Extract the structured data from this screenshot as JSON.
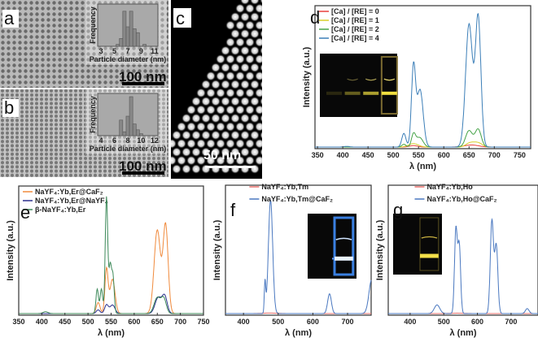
{
  "panels": {
    "a": {
      "label": "a",
      "scale_bar": "100 nm",
      "hist": {
        "ylabel": "Frequency",
        "xlabel": "Particle diameter (nm)",
        "ticks": [
          "3",
          "5",
          "7",
          "9",
          "11"
        ],
        "xlim": [
          2.5,
          11.5
        ],
        "bins": [
          [
            5.5,
            0.05
          ],
          [
            6,
            0.2
          ],
          [
            6.5,
            0.9
          ],
          [
            7,
            0.5
          ],
          [
            7.5,
            0.9
          ],
          [
            8,
            0.45
          ],
          [
            8.5,
            0.35
          ],
          [
            9.5,
            0.05
          ]
        ]
      }
    },
    "b": {
      "label": "b",
      "scale_bar": "100 nm",
      "hist": {
        "ylabel": "Frequency",
        "xlabel": "Particle diameter (nm)",
        "ticks": [
          "4",
          "6",
          "8",
          "10",
          "12"
        ],
        "xlim": [
          3.5,
          12.5
        ],
        "bins": [
          [
            7,
            0.4
          ],
          [
            7.5,
            0.1
          ],
          [
            8,
            0.5
          ],
          [
            8.5,
            1.0
          ],
          [
            9,
            0.3
          ],
          [
            9.5,
            0.15
          ],
          [
            10,
            0.05
          ]
        ]
      }
    },
    "c": {
      "label": "c",
      "scale_bar": "50 nm"
    }
  },
  "chart_data": [
    {
      "id": "d",
      "type": "line",
      "label": "d",
      "xlabel": "λ (nm)",
      "ylabel": "Intensity (a.u.)",
      "xlim": [
        345,
        772
      ],
      "ticks": [
        350,
        400,
        450,
        500,
        550,
        600,
        650,
        700,
        750
      ],
      "legend": "top-left",
      "inset_photo": "yellow",
      "series": [
        {
          "name": "[Ca] / [RE] = 0",
          "color": "#e8413c",
          "peaks": [
            [
              540,
              0.01,
              12
            ],
            [
              655,
              0.015,
              20
            ]
          ]
        },
        {
          "name": "[Ca] / [RE] = 1",
          "color": "#d8cf2a",
          "peaks": [
            [
              540,
              0.025,
              14
            ],
            [
              652,
              0.03,
              12
            ],
            [
              668,
              0.03,
              12
            ]
          ]
        },
        {
          "name": "[Ca] / [RE] = 2",
          "color": "#45a348",
          "peaks": [
            [
              521,
              0.02,
              6
            ],
            [
              540,
              0.09,
              6
            ],
            [
              552,
              0.07,
              10
            ],
            [
              650,
              0.12,
              10
            ],
            [
              668,
              0.13,
              9
            ]
          ]
        },
        {
          "name": "[Ca] / [RE] = 4",
          "color": "#3c7fb8",
          "peaks": [
            [
              408,
              0.005,
              8
            ],
            [
              521,
              0.1,
              6
            ],
            [
              540,
              0.58,
              6
            ],
            [
              553,
              0.42,
              9
            ],
            [
              650,
              0.9,
              10
            ],
            [
              668,
              0.95,
              8
            ]
          ]
        }
      ]
    },
    {
      "id": "e",
      "type": "line",
      "label": "e",
      "xlabel": "λ (nm)",
      "ylabel": "Intensity (a.u.)",
      "xlim": [
        350,
        750
      ],
      "ticks": [
        350,
        400,
        450,
        500,
        550,
        600,
        650,
        700,
        750
      ],
      "legend": "top-left",
      "series": [
        {
          "name": "NaYF₄:Yb,Er@CaF₂",
          "color": "#f08a3c",
          "peaks": [
            [
              522,
              0.09,
              6
            ],
            [
              540,
              0.36,
              5
            ],
            [
              553,
              0.28,
              8
            ],
            [
              650,
              0.68,
              10
            ],
            [
              668,
              0.72,
              8
            ]
          ]
        },
        {
          "name": "NaYF₄:Yb,Er@NaYF₄",
          "color": "#2b2f8c",
          "peaks": [
            [
              522,
              0.03,
              6
            ],
            [
              540,
              0.07,
              6
            ],
            [
              553,
              0.07,
              8
            ],
            [
              652,
              0.13,
              10
            ],
            [
              666,
              0.14,
              8
            ]
          ]
        },
        {
          "name": "β-NaYF₄:Yb,Er",
          "color": "#3d8a5a",
          "peaks": [
            [
              408,
              0.015,
              8
            ],
            [
              520,
              0.2,
              4
            ],
            [
              529,
              0.2,
              4
            ],
            [
              540,
              0.95,
              4
            ],
            [
              548,
              0.38,
              4
            ],
            [
              554,
              0.3,
              4
            ],
            [
              650,
              0.13,
              10
            ],
            [
              664,
              0.12,
              8
            ]
          ]
        }
      ]
    },
    {
      "id": "f",
      "type": "line",
      "label": "f",
      "xlabel": "λ (nm)",
      "ylabel": "Intensity (a.u.)",
      "xlim": [
        348,
        768
      ],
      "ticks": [
        400,
        500,
        600,
        700
      ],
      "legend": "top-right",
      "inset_photo": "blue",
      "series": [
        {
          "name": "NaYF₄:Yb,Tm",
          "color": "#e8706c",
          "peaks": [
            [
              475,
              0.004,
              30
            ]
          ]
        },
        {
          "name": "NaYF₄:Yb,Tm@CaF₂",
          "color": "#4a78c0",
          "peaks": [
            [
              462,
              0.25,
              3
            ],
            [
              478,
              0.92,
              9
            ],
            [
              648,
              0.16,
              8
            ],
            [
              770,
              0.28,
              12
            ]
          ]
        }
      ]
    },
    {
      "id": "g",
      "type": "line",
      "label": "g",
      "xlabel": "λ (nm)",
      "ylabel": "Intensity (a.u.)",
      "xlim": [
        335,
        780
      ],
      "ticks": [
        400,
        500,
        600,
        700
      ],
      "legend": "top-right",
      "inset_photo": "yellow",
      "series": [
        {
          "name": "NaYF₄:Yb,Ho",
          "color": "#e8706c",
          "peaks": [
            [
              540,
              0.003,
              30
            ]
          ]
        },
        {
          "name": "NaYF₄:Yb,Ho@CaF₂",
          "color": "#4a78c0",
          "peaks": [
            [
              480,
              0.07,
              12
            ],
            [
              536,
              0.68,
              6
            ],
            [
              546,
              0.55,
              6
            ],
            [
              643,
              0.75,
              7
            ],
            [
              656,
              0.55,
              7
            ],
            [
              748,
              0.04,
              8
            ]
          ]
        }
      ]
    }
  ]
}
